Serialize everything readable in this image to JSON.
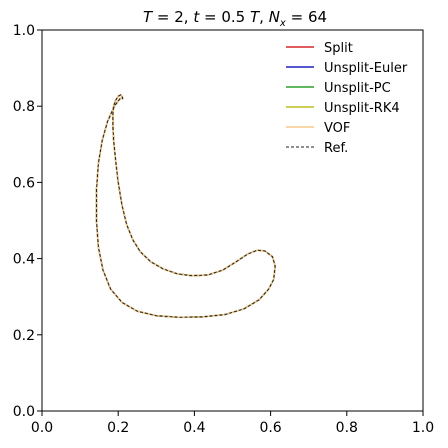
{
  "chart_data": {
    "type": "line",
    "title": "T = 2, t = 0.5 T, N_x = 64",
    "title_parts": {
      "T_symbol": "T",
      "T_value": "2",
      "t_symbol": "t",
      "t_value": "0.5",
      "t_unit_symbol": "T",
      "N_symbol": "N",
      "N_subscript": "x",
      "N_value": "64"
    },
    "xlabel": "",
    "ylabel": "",
    "xlim": [
      0.0,
      1.0
    ],
    "ylim": [
      0.0,
      1.0
    ],
    "xticks": [
      "0.0",
      "0.2",
      "0.4",
      "0.6",
      "0.8",
      "1.0"
    ],
    "yticks": [
      "0.0",
      "0.2",
      "0.4",
      "0.6",
      "0.8",
      "1.0"
    ],
    "grid": false,
    "legend_position": "top-right",
    "series": [
      {
        "name": "Split",
        "color": "#d62728",
        "dash": "solid",
        "width": 1.4
      },
      {
        "name": "Unsplit-Euler",
        "color": "#1f1fbf",
        "dash": "solid",
        "width": 1.4
      },
      {
        "name": "Unsplit-PC",
        "color": "#2ca02c",
        "dash": "solid",
        "width": 1.4
      },
      {
        "name": "Unsplit-RK4",
        "color": "#bcbd22",
        "dash": "solid",
        "width": 1.4
      },
      {
        "name": "VOF",
        "color": "#f5c88a",
        "dash": "solid",
        "width": 1.6
      },
      {
        "name": "Ref.",
        "color": "#222222",
        "dash": "dashed",
        "width": 1.0
      }
    ],
    "shape": {
      "x": [
        0.205,
        0.19,
        0.172,
        0.158,
        0.148,
        0.143,
        0.143,
        0.148,
        0.16,
        0.18,
        0.21,
        0.25,
        0.3,
        0.36,
        0.42,
        0.48,
        0.53,
        0.57,
        0.595,
        0.608,
        0.612,
        0.605,
        0.585,
        0.565,
        0.54,
        0.51,
        0.475,
        0.435,
        0.395,
        0.355,
        0.318,
        0.285,
        0.258,
        0.238,
        0.222,
        0.21,
        0.2,
        0.193,
        0.188,
        0.186,
        0.186,
        0.188,
        0.193,
        0.2,
        0.207,
        0.21,
        0.212,
        0.205
      ],
      "y": [
        0.82,
        0.8,
        0.76,
        0.71,
        0.65,
        0.58,
        0.5,
        0.43,
        0.37,
        0.32,
        0.285,
        0.262,
        0.25,
        0.246,
        0.247,
        0.253,
        0.268,
        0.292,
        0.32,
        0.345,
        0.38,
        0.405,
        0.42,
        0.422,
        0.412,
        0.392,
        0.37,
        0.357,
        0.355,
        0.36,
        0.373,
        0.392,
        0.418,
        0.45,
        0.49,
        0.54,
        0.6,
        0.66,
        0.71,
        0.75,
        0.78,
        0.8,
        0.815,
        0.826,
        0.83,
        0.826,
        0.82,
        0.82
      ]
    }
  }
}
